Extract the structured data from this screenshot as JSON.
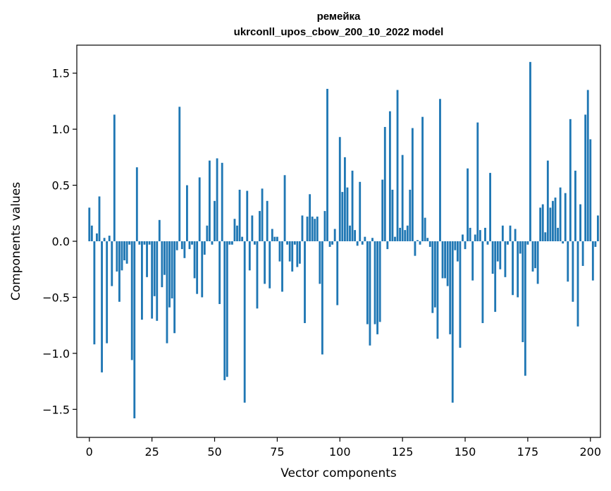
{
  "chart_data": {
    "type": "bar",
    "title": "ремейка",
    "subtitle": "ukrconll_upos_cbow_200_10_2022 model",
    "xlabel": "Vector components",
    "ylabel": "Components values",
    "xlim": [
      -5,
      204
    ],
    "ylim": [
      -1.75,
      1.75
    ],
    "xticks": [
      0,
      25,
      50,
      75,
      100,
      125,
      150,
      175,
      200
    ],
    "xtick_labels": [
      "0",
      "25",
      "50",
      "75",
      "100",
      "125",
      "150",
      "175",
      "200"
    ],
    "yticks": [
      -1.5,
      -1.0,
      -0.5,
      0.0,
      0.5,
      1.0,
      1.5
    ],
    "ytick_labels": [
      "−1.5",
      "−1.0",
      "−0.5",
      "0.0",
      "0.5",
      "1.0",
      "1.5"
    ],
    "grid": false,
    "bar_color": "#1f77b4",
    "values": [
      0.3,
      0.14,
      -0.92,
      0.07,
      0.4,
      -1.17,
      0.03,
      -0.91,
      0.05,
      -0.4,
      1.13,
      -0.27,
      -0.54,
      -0.26,
      -0.17,
      -0.2,
      -0.03,
      -1.06,
      -1.58,
      0.66,
      -0.03,
      -0.7,
      -0.03,
      -0.32,
      -0.03,
      -0.69,
      -0.49,
      -0.71,
      0.19,
      -0.41,
      -0.3,
      -0.91,
      -0.59,
      -0.51,
      -0.82,
      -0.08,
      1.2,
      -0.07,
      -0.15,
      0.5,
      -0.07,
      -0.03,
      -0.33,
      -0.47,
      0.57,
      -0.5,
      -0.12,
      0.14,
      0.72,
      -0.03,
      0.36,
      0.74,
      -0.56,
      0.7,
      -1.24,
      -1.21,
      -0.03,
      -0.03,
      0.2,
      0.14,
      0.46,
      0.04,
      -1.44,
      0.45,
      -0.26,
      0.23,
      -0.03,
      -0.6,
      0.27,
      0.47,
      -0.38,
      0.36,
      -0.42,
      0.11,
      0.04,
      0.04,
      -0.18,
      -0.45,
      0.59,
      -0.03,
      -0.18,
      -0.27,
      -0.03,
      -0.23,
      -0.2,
      0.23,
      -0.73,
      0.22,
      0.42,
      0.22,
      0.2,
      0.22,
      -0.38,
      -1.01,
      0.27,
      1.36,
      -0.05,
      -0.03,
      0.11,
      -0.57,
      0.93,
      0.44,
      0.75,
      0.48,
      0.14,
      0.63,
      0.1,
      -0.04,
      0.53,
      -0.03,
      0.04,
      -0.74,
      -0.93,
      0.03,
      -0.74,
      -0.83,
      -0.72,
      0.55,
      1.02,
      -0.07,
      1.16,
      0.46,
      0.04,
      1.35,
      0.12,
      0.77,
      0.1,
      0.14,
      0.46,
      1.01,
      -0.13,
      0.01,
      -0.03,
      1.11,
      0.21,
      0.03,
      -0.05,
      -0.64,
      -0.59,
      -0.87,
      1.27,
      -0.33,
      -0.33,
      -0.4,
      -0.83,
      -1.44,
      -0.08,
      -0.18,
      -0.95,
      0.06,
      -0.07,
      0.65,
      0.12,
      -0.35,
      0.06,
      1.06,
      0.1,
      -0.73,
      0.12,
      -0.03,
      0.61,
      -0.29,
      -0.63,
      -0.18,
      -0.25,
      0.14,
      -0.32,
      -0.03,
      0.14,
      -0.48,
      0.11,
      -0.5,
      -0.11,
      -0.9,
      -1.2,
      -0.03,
      1.6,
      -0.27,
      -0.24,
      -0.38,
      0.3,
      0.33,
      0.08,
      0.72,
      0.3,
      0.36,
      0.39,
      0.12,
      0.48,
      -0.02,
      0.43,
      -0.36,
      1.09,
      -0.54,
      0.63,
      -0.76,
      0.33,
      -0.22,
      1.13,
      1.35,
      0.91,
      -0.35,
      -0.05,
      0.23
    ]
  }
}
